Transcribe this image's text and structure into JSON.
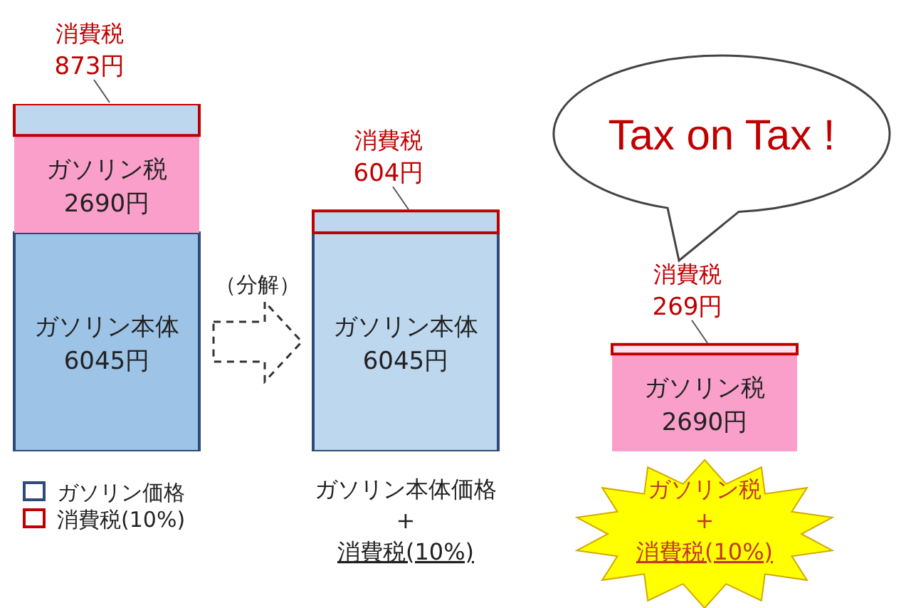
{
  "chart_data": {
    "type": "bar",
    "stacked": true,
    "categories": [
      null,
      "ガソリン本体価格\n+\n消費税(10%)",
      "ガソリン税\n+\n消費税(10%)"
    ],
    "series": [
      {
        "name": "ガソリン本体",
        "color": "#2f4a7a",
        "colors": [
          "#9dc3e6",
          "#bdd7ee",
          "#bdd7ee"
        ],
        "values": [
          6045,
          6045,
          null
        ],
        "value_labels": [
          "6045円",
          "6045円",
          null
        ]
      },
      {
        "name": "ガソリン税",
        "color": "#f99fc9",
        "values": [
          2690,
          null,
          2690
        ],
        "value_labels": [
          "2690円",
          null,
          "2690円"
        ]
      },
      {
        "name": "消費税",
        "color": "#c00000",
        "colors": [
          "#bdd7ee",
          "#bdd7ee",
          "#fde4f0"
        ],
        "values": [
          873,
          604,
          269
        ],
        "value_labels": [
          "873円",
          "604円",
          "269円"
        ]
      }
    ],
    "annotations": [
      "Tax on Tax !",
      "（分解）",
      "ガソリン価格",
      "消費税(10%)"
    ]
  }
}
